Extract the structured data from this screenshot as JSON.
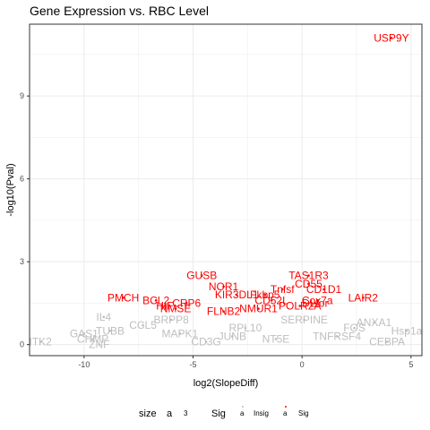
{
  "chart_data": {
    "type": "scatter",
    "title": "Gene Expression vs. RBC Level",
    "xlabel": "log2(SlopeDiff)",
    "ylabel": "-log10(Pval)",
    "xlim": [
      -12.5,
      5.5
    ],
    "ylim": [
      -0.4,
      11.6
    ],
    "x_ticks": [
      -10,
      -5,
      0,
      5
    ],
    "y_ticks": [
      0,
      3,
      6,
      9
    ],
    "grid": true,
    "colors": {
      "Sig": "#ff0000",
      "Insig": "#bebebe"
    },
    "legend": {
      "position": "bottom",
      "size_title": "size",
      "size_key_glyph": "a",
      "size_key_label": "3",
      "sig_title": "Sig",
      "entries": [
        {
          "key_glyph": "a",
          "label": "Insig"
        },
        {
          "key_glyph": "a",
          "label": "Sig"
        }
      ]
    },
    "labeled_points": [
      {
        "label": "USP9Y",
        "x": 4.1,
        "y": 11.1,
        "sig": "Sig"
      },
      {
        "label": "GUSB",
        "x": -4.6,
        "y": 2.5,
        "sig": "Sig"
      },
      {
        "label": "TAS1R3",
        "x": 0.3,
        "y": 2.5,
        "sig": "Sig"
      },
      {
        "label": "NOR1",
        "x": -3.6,
        "y": 2.1,
        "sig": "Sig"
      },
      {
        "label": "Tnfsf",
        "x": -0.9,
        "y": 2.0,
        "sig": "Sig"
      },
      {
        "label": "CD55",
        "x": 0.3,
        "y": 2.2,
        "sig": "Sig"
      },
      {
        "label": "CD1D1",
        "x": 1.0,
        "y": 2.0,
        "sig": "Sig"
      },
      {
        "label": "KIR3DL1",
        "x": -3.0,
        "y": 1.8,
        "sig": "Sig"
      },
      {
        "label": "Fkbp5",
        "x": -1.7,
        "y": 1.8,
        "sig": "Sig"
      },
      {
        "label": "LAIR2",
        "x": 2.8,
        "y": 1.7,
        "sig": "Sig"
      },
      {
        "label": "PMCH",
        "x": -8.2,
        "y": 1.7,
        "sig": "Sig"
      },
      {
        "label": "BCL2",
        "x": -6.7,
        "y": 1.6,
        "sig": "Sig"
      },
      {
        "label": "CD52L",
        "x": -1.4,
        "y": 1.6,
        "sig": "Sig"
      },
      {
        "label": "CRP6",
        "x": -5.3,
        "y": 1.5,
        "sig": "Sig"
      },
      {
        "label": "HIF",
        "x": -6.3,
        "y": 1.4,
        "sig": "Sig"
      },
      {
        "label": "NMSE",
        "x": -5.8,
        "y": 1.3,
        "sig": "Sig"
      },
      {
        "label": "Cox7a",
        "x": 0.7,
        "y": 1.6,
        "sig": "Sig"
      },
      {
        "label": "DLfor",
        "x": 0.6,
        "y": 1.5,
        "sig": "Sig"
      },
      {
        "label": "POLR2A",
        "x": -0.1,
        "y": 1.4,
        "sig": "Sig"
      },
      {
        "label": "NMUR1",
        "x": -2.0,
        "y": 1.3,
        "sig": "Sig"
      },
      {
        "label": "FLNB2",
        "x": -3.6,
        "y": 1.2,
        "sig": "Sig"
      },
      {
        "label": "IL4",
        "x": -9.1,
        "y": 1.0,
        "sig": "Insig"
      },
      {
        "label": "ITK2",
        "x": -12.0,
        "y": 0.1,
        "sig": "Insig"
      },
      {
        "label": "GAS1",
        "x": -10.0,
        "y": 0.4,
        "sig": "Insig"
      },
      {
        "label": "TUBB",
        "x": -8.8,
        "y": 0.5,
        "sig": "Insig"
      },
      {
        "label": "CHMP",
        "x": -9.6,
        "y": 0.2,
        "sig": "Insig"
      },
      {
        "label": "BRPP8",
        "x": -6.0,
        "y": 0.9,
        "sig": "Insig"
      },
      {
        "label": "ANXA1",
        "x": 3.3,
        "y": 0.8,
        "sig": "Insig"
      },
      {
        "label": "Hsp1a",
        "x": 4.8,
        "y": 0.5,
        "sig": "Insig"
      },
      {
        "label": "CEBPA",
        "x": 3.9,
        "y": 0.1,
        "sig": "Insig"
      },
      {
        "label": "SERPINE",
        "x": 0.1,
        "y": 0.9,
        "sig": "Insig"
      },
      {
        "label": "NT5E",
        "x": -1.2,
        "y": 0.2,
        "sig": "Insig"
      },
      {
        "label": "ZNF",
        "x": -9.3,
        "y": 0.0,
        "sig": "Insig"
      },
      {
        "label": "CD3G",
        "x": -4.4,
        "y": 0.1,
        "sig": "Insig"
      },
      {
        "label": "RPL10",
        "x": -2.6,
        "y": 0.6,
        "sig": "Insig"
      },
      {
        "label": "TNFRSF4",
        "x": 1.6,
        "y": 0.3,
        "sig": "Insig"
      },
      {
        "label": "MAPK1",
        "x": -5.6,
        "y": 0.4,
        "sig": "Insig"
      },
      {
        "label": "CCL5",
        "x": -7.3,
        "y": 0.7,
        "sig": "Insig"
      },
      {
        "label": "FOS",
        "x": 2.4,
        "y": 0.6,
        "sig": "Insig"
      },
      {
        "label": "JUNB",
        "x": -3.2,
        "y": 0.3,
        "sig": "Insig"
      }
    ]
  }
}
